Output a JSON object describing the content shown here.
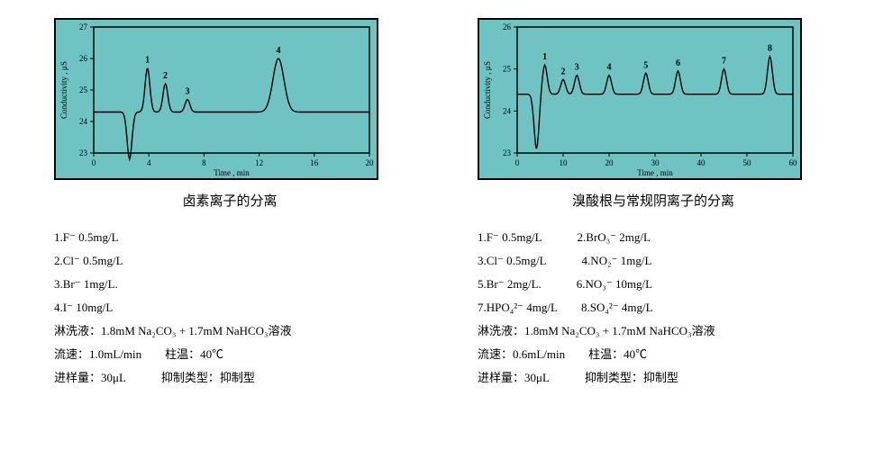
{
  "charts": [
    {
      "title": "卤素离子的分离",
      "bg_color": "#6fc3c2",
      "axis_color": "#000000",
      "xlabel": "Time , min",
      "ylabel": "Conductivity , µS",
      "xlim": [
        0,
        20
      ],
      "xticks": [
        0,
        4,
        8,
        12,
        16,
        20
      ],
      "ylim": [
        23,
        27
      ],
      "yticks": [
        23,
        24,
        25,
        26,
        27
      ],
      "baseline": 24.3,
      "peaks": [
        {
          "x": 2.6,
          "h": -1.5,
          "label": ""
        },
        {
          "x": 3.9,
          "h": 1.4,
          "label": "1"
        },
        {
          "x": 5.2,
          "h": 0.9,
          "label": "2"
        },
        {
          "x": 6.8,
          "h": 0.4,
          "label": "3"
        },
        {
          "x": 13.4,
          "h": 1.7,
          "label": "4",
          "wide": 1.6
        }
      ],
      "legend": [
        "1.F⁻ 0.5mg/L",
        "2.Cl⁻ 0.5mg/L",
        "3.Br⁻ 1mg/L.",
        "4.I⁻ 10mg/L",
        "淋洗液：1.8mM Na₂CO₃ + 1.7mM NaHCO₃溶液",
        "流速：1.0mL/min  柱温：40℃",
        "进样量：30μL   抑制类型：抑制型"
      ]
    },
    {
      "title": "溴酸根与常规阴离子的分离",
      "bg_color": "#6fc3c2",
      "axis_color": "#000000",
      "xlabel": "Time , min",
      "ylabel": "Conductivity , µS",
      "xlim": [
        0,
        60
      ],
      "xticks": [
        0,
        10,
        20,
        30,
        40,
        50,
        60
      ],
      "ylim": [
        23,
        26
      ],
      "yticks": [
        23,
        24,
        25,
        26
      ],
      "baseline": 24.4,
      "peaks": [
        {
          "x": 4.2,
          "h": -1.3,
          "label": ""
        },
        {
          "x": 6.0,
          "h": 0.7,
          "label": "1"
        },
        {
          "x": 10.0,
          "h": 0.35,
          "label": "2"
        },
        {
          "x": 13.0,
          "h": 0.45,
          "label": "3"
        },
        {
          "x": 20.0,
          "h": 0.45,
          "label": "4"
        },
        {
          "x": 28.0,
          "h": 0.5,
          "label": "5"
        },
        {
          "x": 35.0,
          "h": 0.55,
          "label": "6"
        },
        {
          "x": 45.0,
          "h": 0.6,
          "label": "7"
        },
        {
          "x": 55.0,
          "h": 0.9,
          "label": "8"
        }
      ],
      "legend": [
        "1.F⁻ 0.5mg/L   2.BrO₃⁻ 2mg/L",
        "3.Cl⁻ 0.5mg/L   4.NO₂⁻ 1mg/L",
        "5.Br⁻ 2mg/L.   6.NO₃⁻ 10mg/L",
        "7.HPO₄²⁻ 4mg/L  8.SO₄²⁻ 4mg/L",
        "淋洗液：1.8mM Na₂CO₃ + 1.7mM NaHCO₃溶液",
        "流速：0.6mL/min  柱温：40℃",
        "进样量：30μL   抑制类型：抑制型"
      ]
    }
  ],
  "style": {
    "trace_color": "#000000",
    "label_fontsize": 9,
    "tick_fontsize": 9,
    "peak_label_fontsize": 10,
    "peak_label_weight": "bold"
  }
}
